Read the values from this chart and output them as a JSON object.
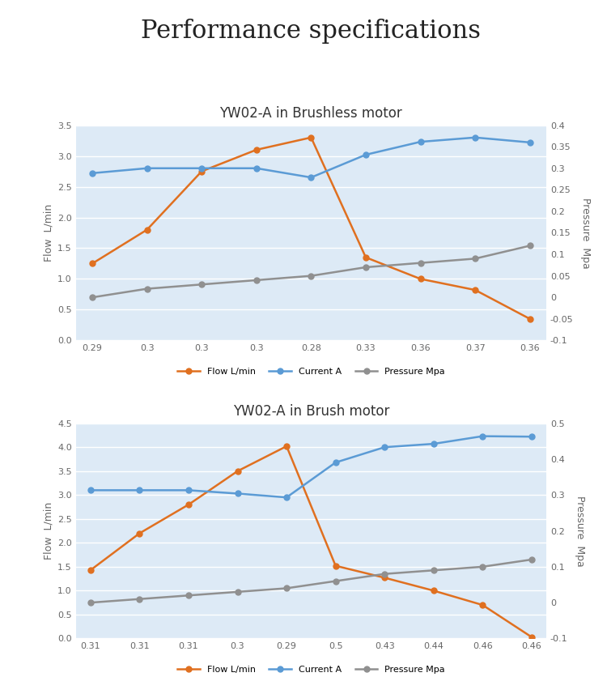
{
  "title": "Performance specifications",
  "title_fontsize": 22,
  "title_font": "serif",
  "chart1": {
    "title": "YW02-A in Brushless motor",
    "x_labels": [
      "0.29",
      "0.3",
      "0.3",
      "0.3",
      "0.28",
      "0.33",
      "0.36",
      "0.37",
      "0.36"
    ],
    "flow": [
      1.25,
      1.8,
      2.75,
      3.1,
      3.3,
      1.35,
      1.0,
      0.82,
      0.35
    ],
    "current": [
      2.72,
      2.8,
      2.8,
      2.8,
      2.65,
      3.02,
      3.23,
      3.3,
      3.22
    ],
    "pressure_mpa": [
      0.0,
      0.02,
      0.03,
      0.04,
      0.05,
      0.07,
      0.08,
      0.09,
      0.12
    ],
    "ylabel_left": "Flow  L/min",
    "ylabel_right": "Pressure  Mpa",
    "ylim_left": [
      0,
      3.5
    ],
    "ylim_right": [
      -0.1,
      0.4
    ],
    "yticks_left": [
      0,
      0.5,
      1.0,
      1.5,
      2.0,
      2.5,
      3.0,
      3.5
    ],
    "yticks_right": [
      -0.1,
      -0.05,
      0,
      0.05,
      0.1,
      0.15,
      0.2,
      0.25,
      0.3,
      0.35,
      0.4
    ]
  },
  "chart2": {
    "title": "YW02-A in Brush motor",
    "x_labels": [
      "0.31",
      "0.31",
      "0.31",
      "0.3",
      "0.29",
      "0.5",
      "0.43",
      "0.44",
      "0.46",
      "0.46"
    ],
    "flow": [
      1.43,
      2.2,
      2.8,
      3.5,
      4.02,
      1.52,
      1.27,
      1.0,
      0.7,
      0.03
    ],
    "current": [
      3.1,
      3.1,
      3.1,
      3.03,
      2.95,
      3.68,
      4.0,
      4.07,
      4.23,
      4.22
    ],
    "pressure_mpa": [
      0.0,
      0.01,
      0.02,
      0.03,
      0.04,
      0.06,
      0.08,
      0.09,
      0.1,
      0.12
    ],
    "ylabel_left": "Flow  L/min",
    "ylabel_right": "Pressure  Mpa",
    "ylim_left": [
      0,
      4.5
    ],
    "ylim_right": [
      -0.1,
      0.5
    ],
    "yticks_left": [
      0,
      0.5,
      1.0,
      1.5,
      2.0,
      2.5,
      3.0,
      3.5,
      4.0,
      4.5
    ],
    "yticks_right": [
      -0.1,
      0,
      0.1,
      0.2,
      0.3,
      0.4,
      0.5
    ]
  },
  "flow_color": "#E07020",
  "current_color": "#5B9BD5",
  "pressure_color": "#909090",
  "bg_color": "#DDEAF6",
  "legend_labels": [
    "Flow L/min",
    "Current A",
    "Pressure Mpa"
  ],
  "marker": "o",
  "linewidth": 1.8,
  "markersize": 5
}
